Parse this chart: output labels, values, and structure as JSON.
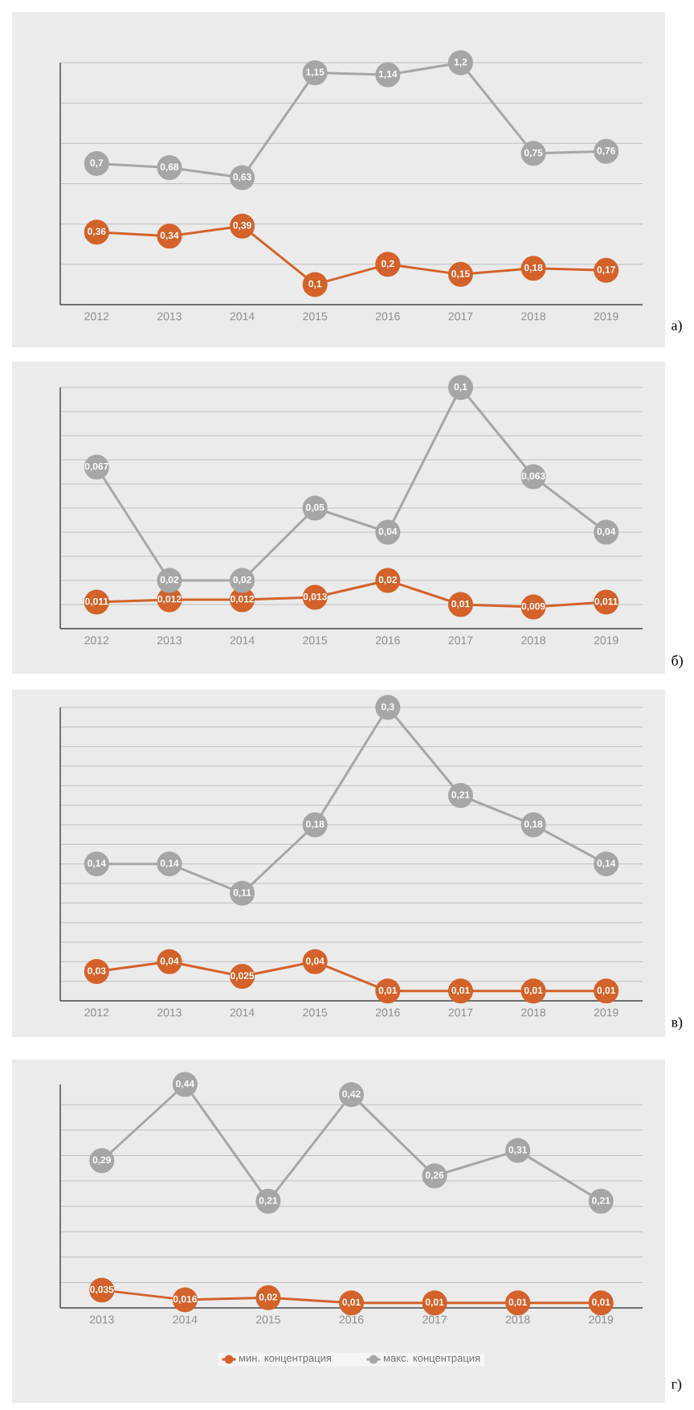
{
  "chart_data": [
    {
      "type": "line",
      "categories": [
        "2012",
        "2013",
        "2014",
        "2015",
        "2016",
        "2017",
        "2018",
        "2019"
      ],
      "series": [
        {
          "color": "#d4622a",
          "values": [
            0.36,
            0.34,
            0.39,
            0.1,
            0.2,
            0.15,
            0.18,
            0.17
          ],
          "value_labels": [
            "0,36",
            "0,34",
            "0,39",
            "0,1",
            "0,2",
            "0,15",
            "0,18",
            "0,17"
          ]
        },
        {
          "color": "#a6a6a6",
          "values": [
            0.7,
            0.68,
            0.63,
            1.15,
            1.14,
            1.2,
            0.75,
            0.76
          ],
          "value_labels": [
            "0,7",
            "0,68",
            "0,63",
            "1,15",
            "1,14",
            "1,2",
            "0,75",
            "0,76"
          ]
        }
      ],
      "tick_labels": "x",
      "grid": "y",
      "marker": "circle",
      "legend": false,
      "annotations": [
        "а)"
      ]
    },
    {
      "type": "line",
      "categories": [
        "2012",
        "2013",
        "2014",
        "2015",
        "2016",
        "2017",
        "2018",
        "2019"
      ],
      "series": [
        {
          "color": "#d4622a",
          "values": [
            0.011,
            0.012,
            0.012,
            0.013,
            0.02,
            0.01,
            0.009,
            0.011
          ],
          "value_labels": [
            "0,011",
            "0,012",
            "0,012",
            "0,013",
            "0,02",
            "0,01",
            "0,009",
            "0,011"
          ]
        },
        {
          "color": "#a6a6a6",
          "values": [
            0.067,
            0.02,
            0.02,
            0.05,
            0.04,
            0.1,
            0.063,
            0.04
          ],
          "value_labels": [
            "0,067",
            "0,02",
            "0,02",
            "0,05",
            "0,04",
            "0,1",
            "0,063",
            "0,04"
          ]
        }
      ],
      "tick_labels": "x",
      "grid": "y",
      "marker": "circle",
      "legend": false,
      "annotations": [
        "б)"
      ]
    },
    {
      "type": "line",
      "categories": [
        "2012",
        "2013",
        "2014",
        "2015",
        "2016",
        "2017",
        "2018",
        "2019"
      ],
      "series": [
        {
          "color": "#d4622a",
          "values": [
            0.03,
            0.04,
            0.025,
            0.04,
            0.01,
            0.01,
            0.01,
            0.01
          ],
          "value_labels": [
            "0,03",
            "0,04",
            "0,025",
            "0,04",
            "0,01",
            "0,01",
            "0,01",
            "0,01"
          ]
        },
        {
          "color": "#a6a6a6",
          "values": [
            0.14,
            0.14,
            0.11,
            0.18,
            0.3,
            0.21,
            0.18,
            0.14
          ],
          "value_labels": [
            "0,14",
            "0,14",
            "0,11",
            "0,18",
            "0,3",
            "0,21",
            "0,18",
            "0,14"
          ]
        }
      ],
      "tick_labels": "x",
      "grid": "y",
      "marker": "circle",
      "legend": false,
      "annotations": [
        "в)"
      ]
    },
    {
      "type": "line",
      "categories": [
        "2013",
        "2014",
        "2015",
        "2016",
        "2017",
        "2018",
        "2019"
      ],
      "series": [
        {
          "name": "мин. концентрация",
          "color": "#d4622a",
          "values": [
            0.035,
            0.016,
            0.02,
            0.01,
            0.01,
            0.01,
            0.01
          ],
          "value_labels": [
            "0,035",
            "0,016",
            "0,02",
            "0,01",
            "0,01",
            "0,01",
            "0,01"
          ]
        },
        {
          "name": "макс. концентрация",
          "color": "#a6a6a6",
          "values": [
            0.29,
            0.44,
            0.21,
            0.42,
            0.26,
            0.31,
            0.21
          ],
          "value_labels": [
            "0,29",
            "0,44",
            "0,21",
            "0,42",
            "0,26",
            "0,31",
            "0,21"
          ]
        }
      ],
      "tick_labels": "x",
      "grid": "y",
      "marker": "circle",
      "legend": "bottom",
      "annotations": [
        "г)"
      ]
    }
  ]
}
